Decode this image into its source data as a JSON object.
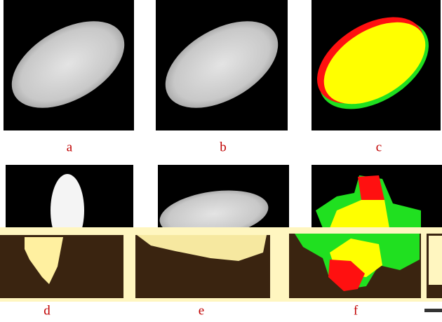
{
  "panels": [
    {
      "label": "a"
    },
    {
      "label": "b"
    },
    {
      "label": "c"
    },
    {
      "label": "d"
    },
    {
      "label": "e"
    },
    {
      "label": "f"
    }
  ]
}
